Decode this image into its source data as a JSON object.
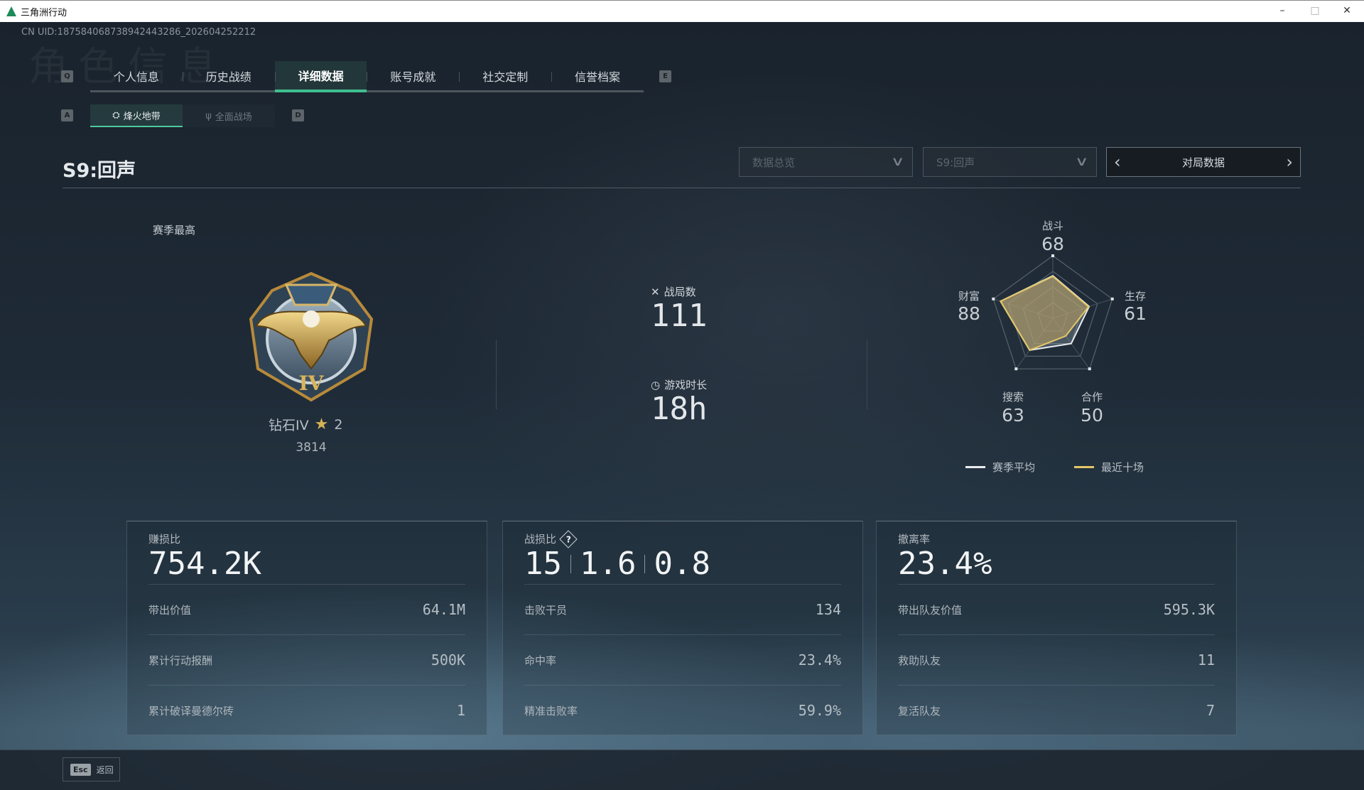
{
  "window": {
    "title": "三角洲行动",
    "minimize": "–",
    "maximize": "□",
    "close": "✕"
  },
  "uid": "CN UID:1875840687389424432​86_202604252212",
  "watermark": "角色信息",
  "keys": {
    "prev_tab": "Q",
    "next_tab": "E",
    "prev_mode": "A",
    "next_mode": "D"
  },
  "tabs": [
    {
      "label": "个人信息"
    },
    {
      "label": "历史战绩"
    },
    {
      "label": "详细数据",
      "active": true
    },
    {
      "label": "账号成就"
    },
    {
      "label": "社交定制"
    },
    {
      "label": "信誉档案"
    }
  ],
  "modes": [
    {
      "label": "烽火地带",
      "icon": "raid-icon",
      "active": true
    },
    {
      "label": "全面战场",
      "icon": "battlefield-icon"
    }
  ],
  "season_title": "S9:回声",
  "filters": {
    "category": "数据总览",
    "season": "S9:回声",
    "match_data": "对局数据"
  },
  "best": {
    "label": "赛季最高",
    "rank": "钻石IV",
    "stars": "2",
    "score": "3814"
  },
  "summary": {
    "matches_label": "战局数",
    "matches": "111",
    "playtime_label": "游戏时长",
    "playtime": "18h"
  },
  "chart_data": {
    "type": "radar",
    "axes": [
      "战斗",
      "生存",
      "合作",
      "搜索",
      "财富"
    ],
    "labels": [
      "68",
      "61",
      "50",
      "63",
      "88"
    ],
    "range": [
      0,
      100
    ],
    "series": [
      {
        "name": "赛季平均",
        "values": [
          68,
          61,
          50,
          63,
          88
        ],
        "color": "#e8ecef"
      },
      {
        "name": "最近十场",
        "values": [
          67,
          60,
          35,
          63,
          88
        ],
        "color": "#e3c766"
      }
    ],
    "legend": "bottom"
  },
  "cards": [
    {
      "label": "赚损比",
      "big": [
        "754.2K"
      ],
      "rows": [
        {
          "k": "带出价值",
          "v": "64.1M"
        },
        {
          "k": "累计行动报酬",
          "v": "500K"
        },
        {
          "k": "累计破译曼德尔砖",
          "v": "1"
        }
      ]
    },
    {
      "label": "战损比",
      "help": "?",
      "big": [
        "15",
        "1.6",
        "0.8"
      ],
      "rows": [
        {
          "k": "击败干员",
          "v": "134"
        },
        {
          "k": "命中率",
          "v": "23.4%"
        },
        {
          "k": "精准击败率",
          "v": "59.9%"
        }
      ]
    },
    {
      "label": "撤离率",
      "big": [
        "23.4%"
      ],
      "rows": [
        {
          "k": "带出队友价值",
          "v": "595.3K"
        },
        {
          "k": "救助队友",
          "v": "11"
        },
        {
          "k": "复活队友",
          "v": "7"
        }
      ]
    }
  ],
  "footer": {
    "esc_key": "Esc",
    "back": "返回"
  }
}
